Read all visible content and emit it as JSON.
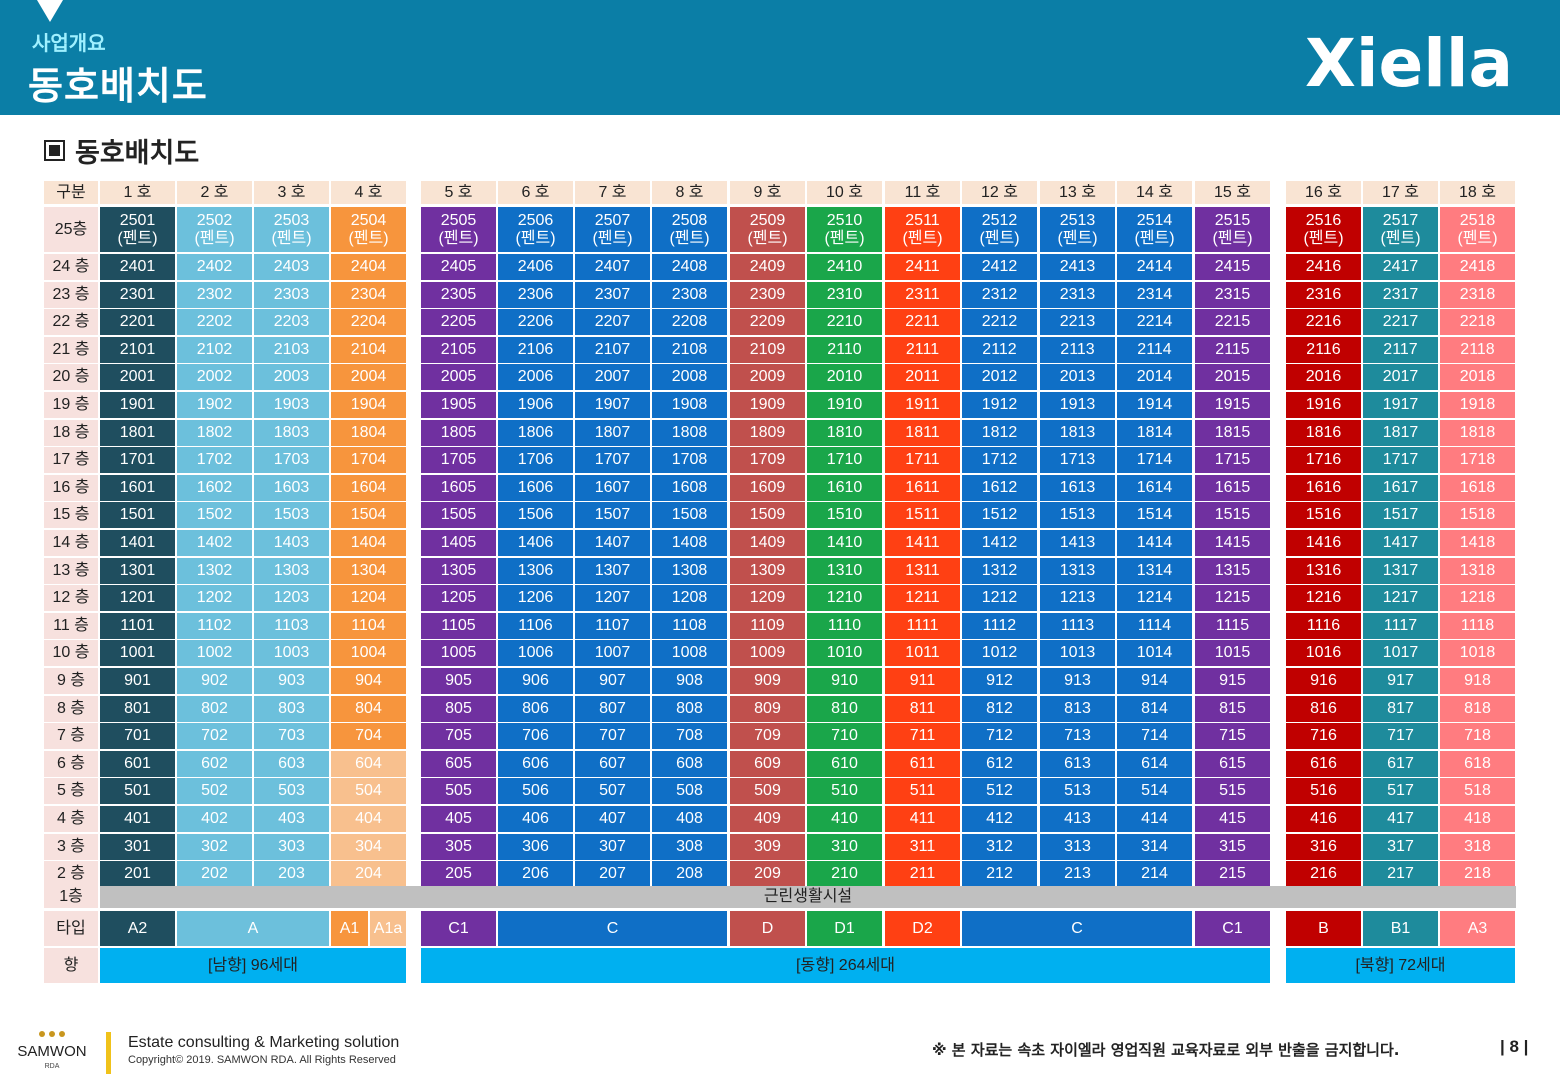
{
  "header": {
    "subtitle": "사업개요",
    "title": "동호배치도",
    "logo_text": "Xiella"
  },
  "section_title": "동호배치도",
  "table": {
    "corner_label": "구분",
    "columns": [
      "1 호",
      "2 호",
      "3 호",
      "4 호",
      "5 호",
      "6 호",
      "7 호",
      "8 호",
      "9 호",
      "10 호",
      "11 호",
      "12 호",
      "13 호",
      "14 호",
      "15 호",
      "16 호",
      "17 호",
      "18 호"
    ],
    "floors": [
      {
        "label": "25층",
        "penthouse": true
      },
      {
        "label": "24 층"
      },
      {
        "label": "23 층"
      },
      {
        "label": "22 층"
      },
      {
        "label": "21 층"
      },
      {
        "label": "20 층"
      },
      {
        "label": "19 층"
      },
      {
        "label": "18 층"
      },
      {
        "label": "17 층"
      },
      {
        "label": "16 층"
      },
      {
        "label": "15 층"
      },
      {
        "label": "14 층"
      },
      {
        "label": "13 층"
      },
      {
        "label": "12 층"
      },
      {
        "label": "11 층"
      },
      {
        "label": "10 층"
      },
      {
        "label": "9 층"
      },
      {
        "label": "8 층"
      },
      {
        "label": "7 층"
      },
      {
        "label": "6 층"
      },
      {
        "label": "5 층"
      },
      {
        "label": "4 층"
      },
      {
        "label": "3 층"
      },
      {
        "label": "2 층"
      }
    ],
    "penthouse_suffix": "(펜트)",
    "first_floor_label": "1층",
    "first_floor_text": "근린생활시설",
    "type_label": "타입",
    "types": [
      {
        "name": "A2",
        "cols": [
          1,
          1
        ],
        "color": "#1f4e5f"
      },
      {
        "name": "A",
        "cols": [
          2,
          3
        ],
        "color": "#6cc0dc"
      },
      {
        "name": "A1",
        "cols": [
          4,
          4
        ],
        "color": "#f7953d"
      },
      {
        "name": "A1a",
        "cols": [
          4.5,
          4.5
        ],
        "color": "#f8c08e"
      },
      {
        "name": "C1",
        "cols": [
          5,
          5
        ],
        "color": "#7030a0"
      },
      {
        "name": "C",
        "cols": [
          6,
          8
        ],
        "color": "#0f6fc6"
      },
      {
        "name": "D",
        "cols": [
          9,
          9
        ],
        "color": "#c0504d"
      },
      {
        "name": "D1",
        "cols": [
          10,
          10
        ],
        "color": "#1aa64a"
      },
      {
        "name": "D2",
        "cols": [
          11,
          11
        ],
        "color": "#ff4013"
      },
      {
        "name": "C",
        "cols": [
          12,
          14
        ],
        "color": "#0f6fc6"
      },
      {
        "name": "C1",
        "cols": [
          15,
          15
        ],
        "color": "#7030a0"
      },
      {
        "name": "B",
        "cols": [
          16,
          16
        ],
        "color": "#c00000"
      },
      {
        "name": "B1",
        "cols": [
          17,
          17
        ],
        "color": "#1e8b9c"
      },
      {
        "name": "A3",
        "cols": [
          18,
          18
        ],
        "color": "#ff7c80"
      }
    ],
    "direction_label": "향",
    "directions": [
      {
        "text": "[남향] 96세대",
        "cols": [
          1,
          4
        ]
      },
      {
        "text": "[동향] 264세대",
        "cols": [
          5,
          15
        ]
      },
      {
        "text": "[북향] 72세대",
        "cols": [
          16,
          18
        ]
      }
    ],
    "column_colors": [
      "#1f4e5f",
      "#6cc0dc",
      "#6cc0dc",
      "#f7953d",
      "#7030a0",
      "#0f6fc6",
      "#0f6fc6",
      "#0f6fc6",
      "#c0504d",
      "#1aa64a",
      "#ff4013",
      "#0f6fc6",
      "#0f6fc6",
      "#0f6fc6",
      "#7030a0",
      "#c00000",
      "#1e8b9c",
      "#ff7c80"
    ],
    "col4_low_floor_color": "#f8c08e",
    "first_floor_color": "#c0c0c0",
    "direction_color": "#00b0f0"
  },
  "footer": {
    "company": "SAMWON",
    "company_sub": "RDA",
    "tagline": "Estate consulting & Marketing solution",
    "copyright": "Copyright© 2019. SAMWON RDA. All Rights Reserved",
    "notice": "※ 본 자료는 속초 자이엘라 영업직원 교육자료로 외부 반출을 금지합니다.",
    "page": "| 8 |"
  }
}
